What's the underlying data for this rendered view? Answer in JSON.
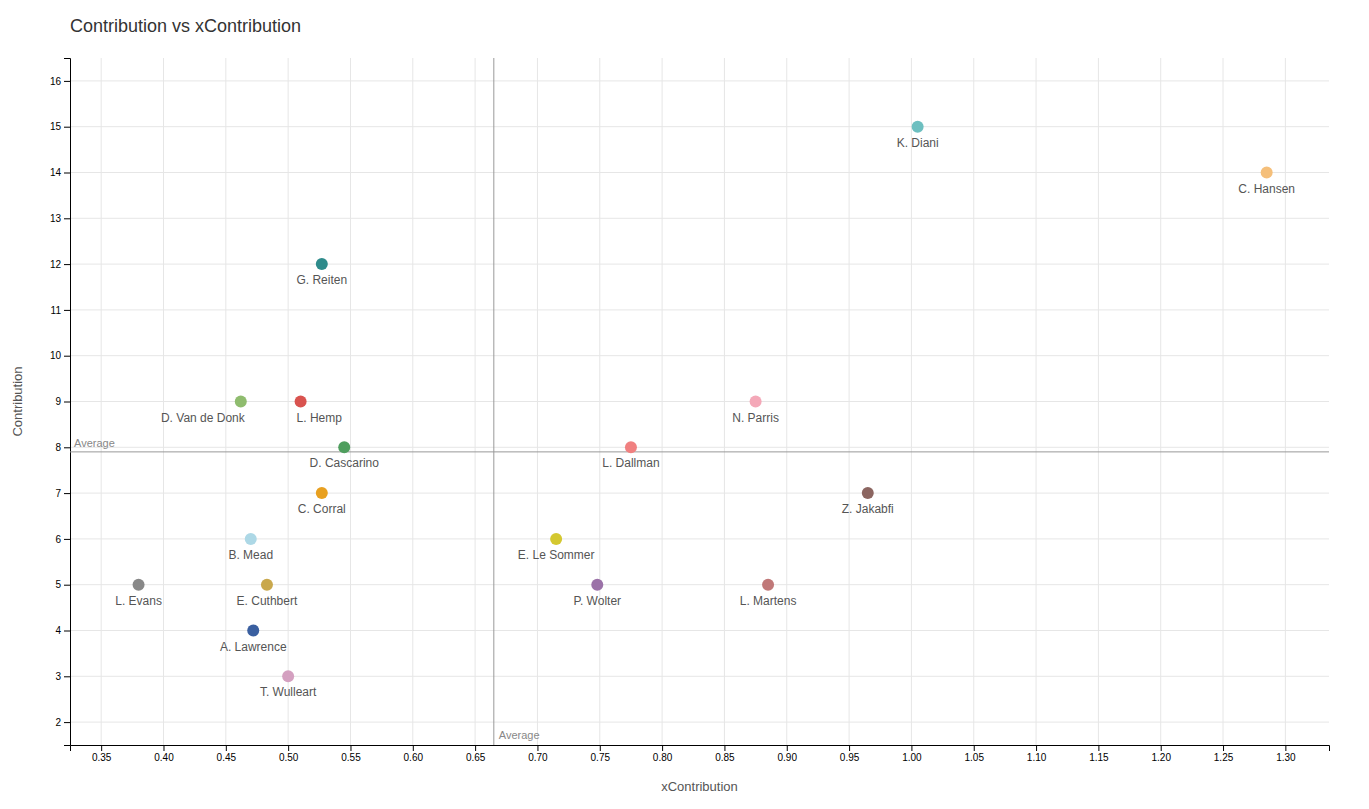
{
  "chart_data": {
    "type": "scatter",
    "title": "Contribution vs xContribution",
    "xlabel": "xContribution",
    "ylabel": "Contribution",
    "xlim": [
      0.325,
      1.335
    ],
    "ylim": [
      1.5,
      16.5
    ],
    "xticks": [
      0.35,
      {
        "value": 0.4,
        "label": "0.40"
      },
      0.45,
      {
        "value": 0.5,
        "label": "0.50"
      },
      0.55,
      {
        "value": 0.6,
        "label": "0.60"
      },
      0.65,
      {
        "value": 0.7,
        "label": "0.70"
      },
      0.75,
      {
        "value": 0.8,
        "label": "0.80"
      },
      0.85,
      {
        "value": 0.9,
        "label": "0.90"
      },
      0.95,
      {
        "value": 1.0,
        "label": "1.00"
      },
      1.05,
      {
        "value": 1.1,
        "label": "1.10"
      },
      1.15,
      {
        "value": 1.2,
        "label": "1.20"
      },
      1.25,
      {
        "value": 1.3,
        "label": "1.30"
      }
    ],
    "yticks": [
      2,
      3,
      4,
      5,
      6,
      7,
      8,
      9,
      10,
      11,
      12,
      13,
      14,
      15,
      16
    ],
    "grid": true,
    "avg_x": 0.665,
    "avg_y": 7.9,
    "avg_label": "Average",
    "labels": [
      "K. Diani",
      "C. Hansen",
      "G. Reiten",
      "D. Van de Donk",
      "L. Hemp",
      "N. Parris",
      "D. Cascarino",
      "L. Dallman",
      "C. Corral",
      "Z. Jakabfi",
      "B. Mead",
      "E. Le Sommer",
      "L. Evans",
      "E. Cuthbert",
      "P. Wolter",
      "L. Martens",
      "A. Lawrence",
      "T. Wulleart"
    ],
    "x": [
      1.005,
      1.285,
      0.527,
      0.462,
      0.51,
      0.875,
      0.545,
      0.775,
      0.527,
      0.965,
      0.47,
      0.715,
      0.38,
      0.483,
      0.748,
      0.885,
      0.472,
      0.5
    ],
    "values": [
      15.0,
      14.0,
      12.0,
      9.0,
      9.0,
      9.0,
      8.0,
      8.0,
      7.0,
      7.0,
      6.0,
      6.0,
      5.0,
      5.0,
      5.0,
      5.0,
      4.0,
      3.0
    ],
    "colors": [
      "#6dbfc0",
      "#f5bf7a",
      "#2e8b8b",
      "#8fbc6e",
      "#d9534f",
      "#f4a8b8",
      "#4f9e5e",
      "#f08080",
      "#e8a020",
      "#8b6560",
      "#add8e6",
      "#d4c830",
      "#888888",
      "#c9a84c",
      "#9b72a8",
      "#c07878",
      "#3a5fa0",
      "#d4a0c0"
    ]
  }
}
